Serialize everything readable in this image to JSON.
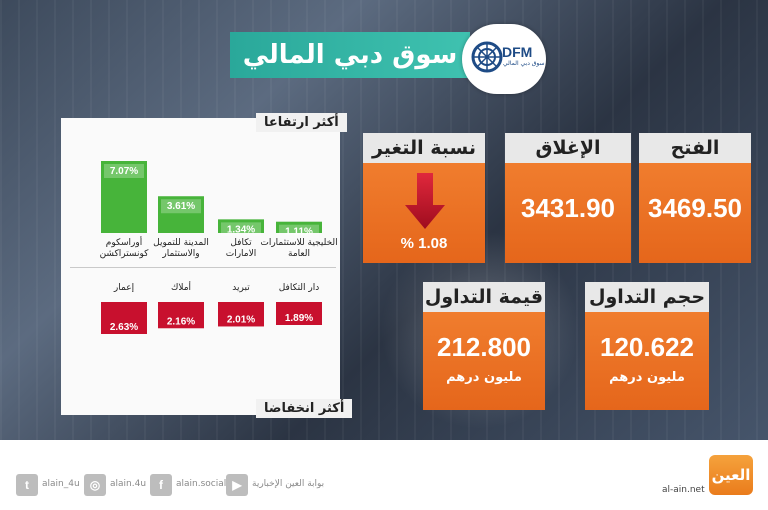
{
  "header": {
    "title": "سوق دبي المالي",
    "logo_text": "DFM",
    "logo_subtext": "سوق دبي المالي"
  },
  "chart_sections": {
    "gainers_label": "أكثر ارتفاعا",
    "losers_label": "أكثر انخفاضا"
  },
  "chart_data": [
    {
      "type": "bar",
      "title": "أكثر ارتفاعا",
      "categories": [
        "أوراسكوم كونستراكشن",
        "المدينة للتمويل والاستثمار",
        "تكافل الامارات",
        "الخليجية للاستثمارات العامة"
      ],
      "value_labels": [
        "7.07%",
        "3.61%",
        "1.34%",
        "1.11%"
      ],
      "values": [
        7.07,
        3.61,
        1.34,
        1.11
      ],
      "ylim": [
        0,
        7.07
      ]
    },
    {
      "type": "bar",
      "title": "أكثر انخفاضا",
      "categories": [
        "إعمار",
        "أملاك",
        "تبريد",
        "دار التكافل"
      ],
      "value_labels": [
        "2.63%",
        "2.16%",
        "2.01%",
        "1.89%"
      ],
      "values": [
        -2.63,
        -2.16,
        -2.01,
        -1.89
      ],
      "ylim": [
        -2.63,
        0
      ]
    }
  ],
  "stats": {
    "open": {
      "label": "الفتح",
      "value": "3469.50"
    },
    "close": {
      "label": "الإغلاق",
      "value": "3431.90"
    },
    "change": {
      "label": "نسبة التغير",
      "value": "% 1.08"
    },
    "volume": {
      "label": "حجم التداول",
      "value": "120.622",
      "unit": "مليون درهم"
    },
    "turnover": {
      "label": "قيمة التداول",
      "value": "212.800",
      "unit": "مليون درهم"
    }
  },
  "colors": {
    "gain": "#47b43a",
    "loss": "#c8102e",
    "accent": "#ea6f22",
    "header": "#2aa89a"
  },
  "footer": {
    "twitter": "alain_4u",
    "instagram": "alain.4u",
    "facebook": "alain.social",
    "youtube": "بوابة العين الإخبارية",
    "brand": "العين",
    "url": "al-ain.net"
  }
}
